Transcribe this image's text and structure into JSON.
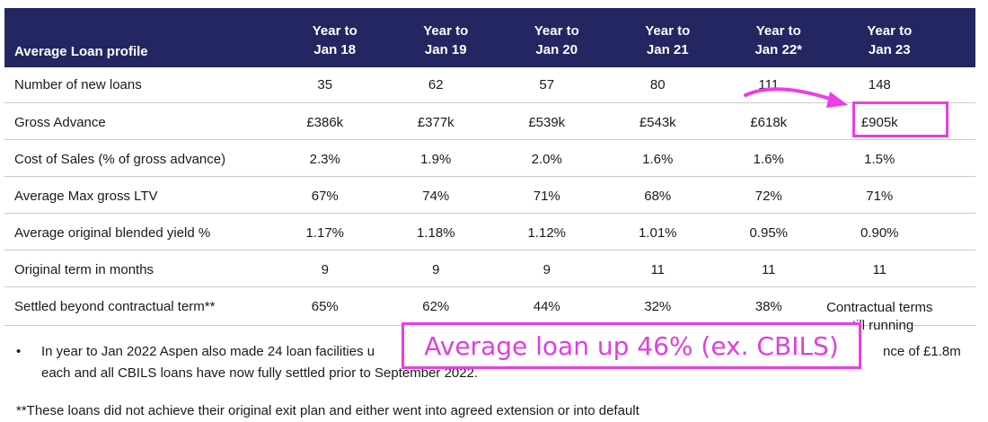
{
  "table": {
    "header": {
      "label": "Average Loan profile",
      "years": [
        {
          "line1": "Year to",
          "line2": "Jan 18"
        },
        {
          "line1": "Year to",
          "line2": "Jan 19"
        },
        {
          "line1": "Year to",
          "line2": "Jan 20"
        },
        {
          "line1": "Year to",
          "line2": "Jan 21"
        },
        {
          "line1": "Year to",
          "line2": "Jan 22*"
        },
        {
          "line1": "Year to",
          "line2": "Jan 23"
        }
      ]
    },
    "rows": [
      {
        "label": "Number of new loans",
        "values": [
          "35",
          "62",
          "57",
          "80",
          "111",
          "148"
        ]
      },
      {
        "label": "Gross Advance",
        "values": [
          "£386k",
          "£377k",
          "£539k",
          "£543k",
          "£618k",
          "£905k"
        ]
      },
      {
        "label": "Cost of Sales (% of gross advance)",
        "values": [
          "2.3%",
          "1.9%",
          "2.0%",
          "1.6%",
          "1.6%",
          "1.5%"
        ]
      },
      {
        "label": "Average Max gross LTV",
        "values": [
          "67%",
          "74%",
          "71%",
          "68%",
          "72%",
          "71%"
        ]
      },
      {
        "label": "Average original blended yield %",
        "values": [
          "1.17%",
          "1.18%",
          "1.12%",
          "1.01%",
          "0.95%",
          "0.90%"
        ]
      },
      {
        "label": "Original term in months",
        "values": [
          "9",
          "9",
          "9",
          "11",
          "11",
          "11"
        ]
      },
      {
        "label": "Settled beyond contractual term**",
        "values": [
          "65%",
          "62%",
          "44%",
          "32%",
          "38%"
        ],
        "last_line1": "Contractual terms",
        "last_line2": "still running"
      }
    ]
  },
  "annotation": {
    "banner": "Average loan up 46% (ex. CBILS)",
    "highlight_color": "#ea3ee6"
  },
  "notes": {
    "bullet": "•",
    "note1_line1": "In year to Jan 2022 Aspen also made 24 loan facilities u",
    "note1_line1_end": "nce of £1.8m",
    "note1_line2": "each and all CBILS loans have now fully settled prior to September 2022.",
    "note2": "**These loans did not achieve their original exit plan and either went into agreed extension or into default"
  },
  "colors": {
    "header_bg": "#232660",
    "accent": "#ea3ee6"
  }
}
